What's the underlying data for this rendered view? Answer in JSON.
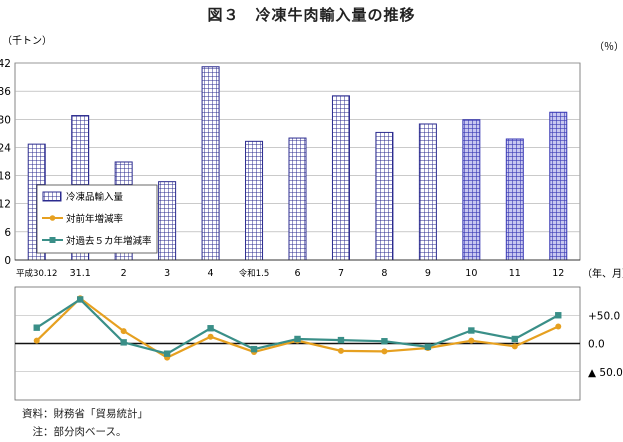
{
  "title": "図３　冷凍牛肉輸入量の推移",
  "chart_data": {
    "type": "bar",
    "categories": [
      "平成30.12",
      "31.1",
      "2",
      "3",
      "4",
      "令和1.5",
      "6",
      "7",
      "8",
      "9",
      "10",
      "11",
      "12"
    ],
    "x_unit_label": "（年、月）",
    "bar_series": {
      "name": "冷凍品輸入量",
      "values": [
        24.7,
        30.8,
        20.9,
        16.7,
        41.2,
        25.3,
        26.0,
        35.0,
        27.2,
        29.0,
        29.9,
        25.8,
        31.5
      ],
      "ylim": [
        0,
        42
      ],
      "yticks": [
        0,
        6,
        12,
        18,
        24,
        30,
        36,
        42
      ],
      "ylabel": "（千トン）",
      "highlight_from_index": 10,
      "color": "#2b2b8f",
      "highlight_color": "#3a3ab5"
    },
    "line_series": [
      {
        "name": "対前年増減率",
        "values": [
          5,
          80,
          22,
          -25,
          12,
          -15,
          5,
          -13,
          -14,
          -8,
          5,
          -5,
          30
        ],
        "color": "#e6a020"
      },
      {
        "name": "対過去５カ年増減率",
        "values": [
          28,
          78,
          2,
          -18,
          27,
          -10,
          8,
          6,
          4,
          -6,
          23,
          8,
          50
        ],
        "color": "#3a8f88"
      }
    ],
    "line_ylim": [
      -100,
      100
    ],
    "line_ytick_labels": [
      "+50.0",
      "0.0",
      "▲ 50.0"
    ],
    "line_ytick_values": [
      50,
      0,
      -50
    ],
    "line_ylabel": "（％）",
    "grid": true,
    "legend_position": "left"
  },
  "notes": {
    "source": "資料：財務省「貿易統計」",
    "note": "　注：部分肉ベース。"
  }
}
